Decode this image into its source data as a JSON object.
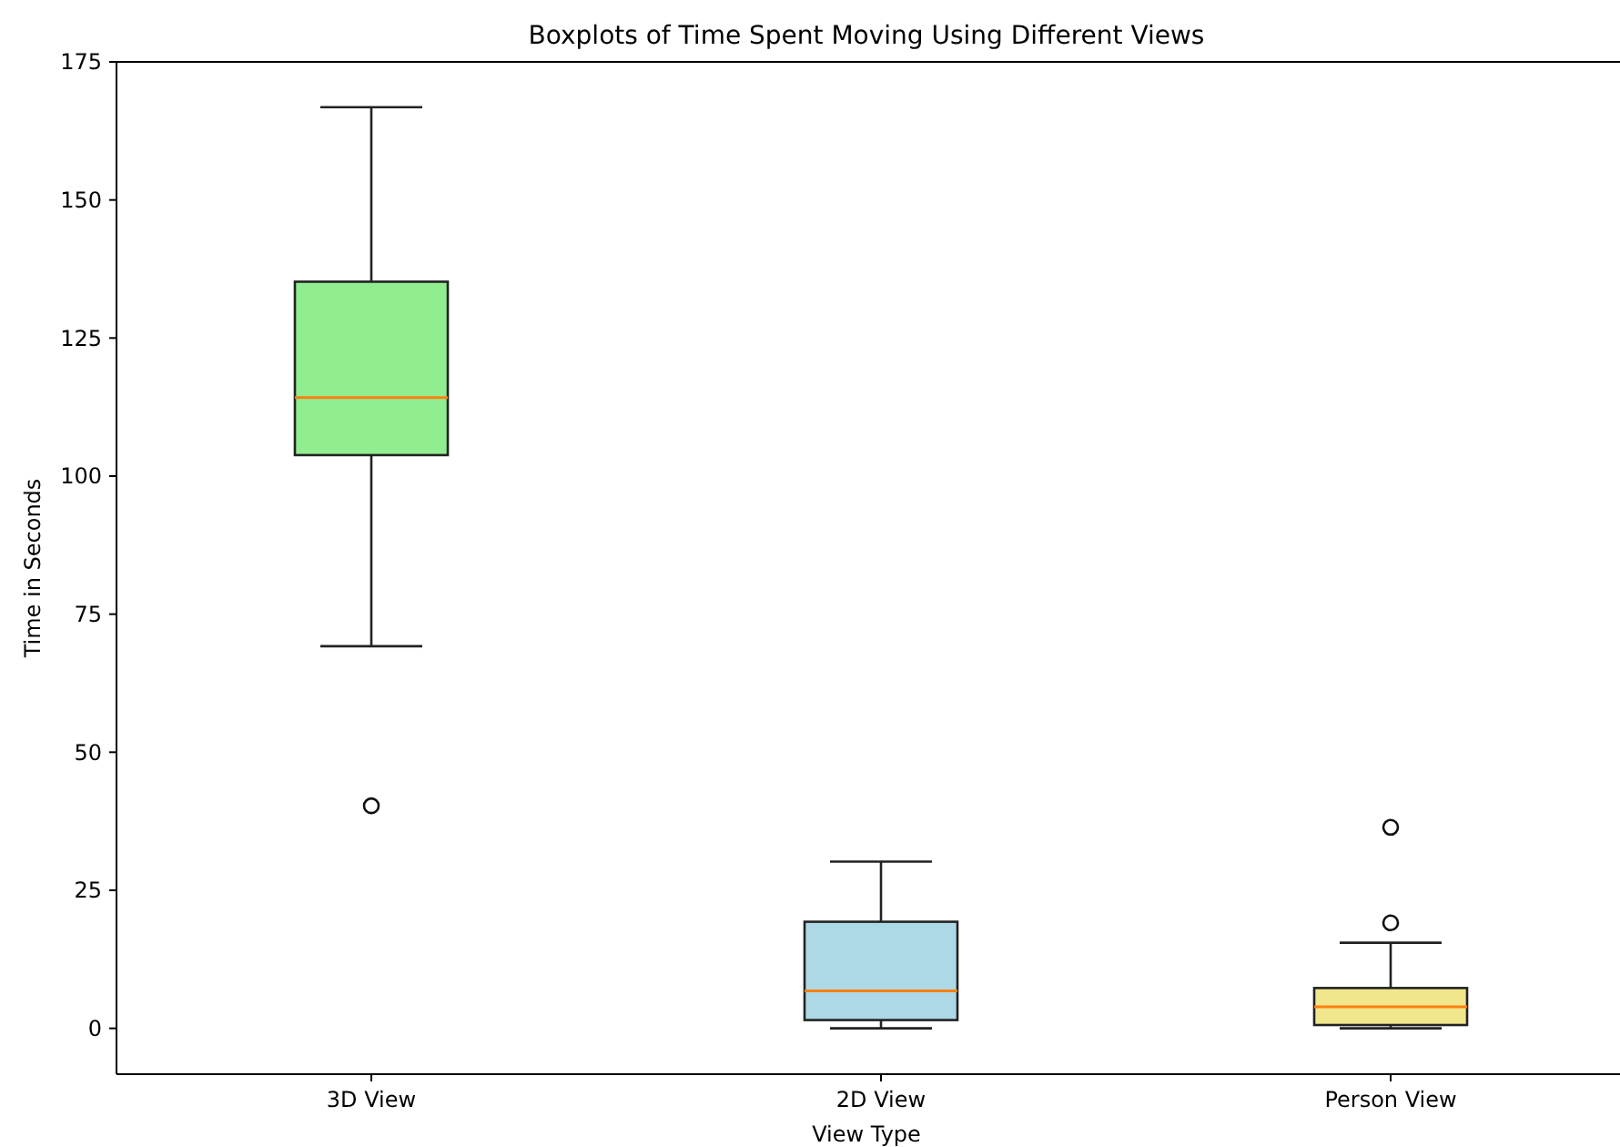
{
  "chart_data": {
    "type": "box",
    "title": "Boxplots of Time Spent Moving Using Different Views",
    "xlabel": "View Type",
    "ylabel": "Time in Seconds",
    "categories": [
      "3D View",
      "2D View",
      "Person View"
    ],
    "colors": [
      "#90ee90",
      "#add8e6",
      "#f0e68c"
    ],
    "boxes": [
      {
        "low": 69.2,
        "q1": 103.8,
        "median": 114.2,
        "q3": 135.2,
        "high": 166.8,
        "outliers": [
          40.3
        ]
      },
      {
        "low": 0,
        "q1": 1.5,
        "median": 6.8,
        "q3": 19.3,
        "high": 30.2
      },
      {
        "low": 0,
        "q1": 0.6,
        "median": 3.9,
        "q3": 7.3,
        "high": 15.5,
        "outliers": [
          19.1,
          36.4
        ]
      }
    ],
    "ylim": [
      -8.3,
      175
    ],
    "yticks": [
      0,
      25,
      50,
      75,
      100,
      125,
      150,
      175
    ],
    "grid": false
  }
}
